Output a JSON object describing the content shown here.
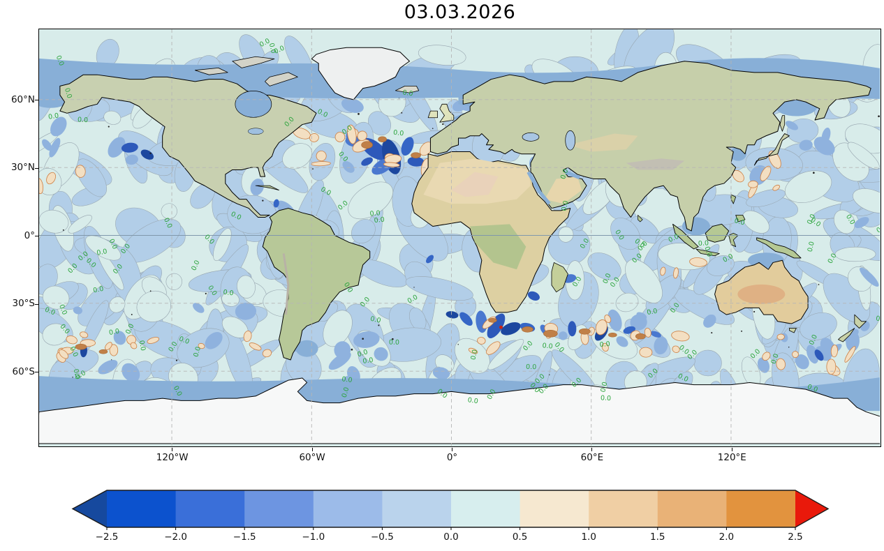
{
  "title": "03.03.2026",
  "map": {
    "lat_ticks": [
      {
        "label": "60°N",
        "lat": 60
      },
      {
        "label": "30°N",
        "lat": 30
      },
      {
        "label": "0°",
        "lat": 0
      },
      {
        "label": "30°S",
        "lat": -30
      },
      {
        "label": "60°S",
        "lat": -60
      }
    ],
    "lon_ticks": [
      {
        "label": "120°W",
        "lon": -120
      },
      {
        "label": "60°W",
        "lon": -60
      },
      {
        "label": "0°",
        "lon": 0
      },
      {
        "label": "60°E",
        "lon": 60
      },
      {
        "label": "120°E",
        "lon": 120
      }
    ],
    "contour_label": {
      "text": "0.0",
      "color": "#2ba43c",
      "count": 100
    },
    "palette": {
      "ocean_zero": "#d8ecea",
      "anom_neg_light": "#b2cee8",
      "anom_neg_mid": "#8fb2de",
      "anom_neg_dark_1": "#4a78cf",
      "anom_neg_dark_2": "#2d59ba",
      "anom_neg_dark_3": "#1c479f",
      "anom_pos_pale": "#f3dfc2",
      "anom_pos_deep": "#c08048",
      "contour_zero": "#96a4ae",
      "contour_warm": "#cd7f43",
      "mask_sea": "#88afd7",
      "lake": "#a9c6e3",
      "gridline": "#b5b5b5",
      "equator_line": "#8098ac",
      "ice_white": "#f7f8f8",
      "coastline": "#000000",
      "hot_spot_red": "#cc2211"
    }
  },
  "colorbar": {
    "range": [
      -2.5,
      2.5
    ],
    "step": 0.5,
    "ticks": [
      "−2.5",
      "−2.0",
      "−1.5",
      "−1.0",
      "−0.5",
      "0.0",
      "0.5",
      "1.0",
      "1.5",
      "2.0",
      "2.5"
    ],
    "segment_colors": [
      "#0c52ce",
      "#3a6fd9",
      "#6d95e1",
      "#9cbbe9",
      "#bad3ec",
      "#d7eeee",
      "#f6e8d0",
      "#f0cfa4",
      "#e9b277",
      "#e2933e"
    ],
    "under_color": "#16499e",
    "over_color": "#e9190b",
    "outline_color": "#1a1a1a"
  },
  "chart_data": {
    "type": "heatmap",
    "title": "03.03.2026",
    "x_tick_labels": [
      "120°W",
      "60°W",
      "0°",
      "60°E",
      "120°E"
    ],
    "y_tick_labels": [
      "60°N",
      "30°N",
      "0°",
      "30°S",
      "60°S"
    ],
    "colorbar_tick_values": [
      -2.5,
      -2.0,
      -1.5,
      -1.0,
      -0.5,
      0.0,
      0.5,
      1.0,
      1.5,
      2.0,
      2.5
    ],
    "colorbar_extends": "both",
    "zero_contour_label": "0.0"
  }
}
